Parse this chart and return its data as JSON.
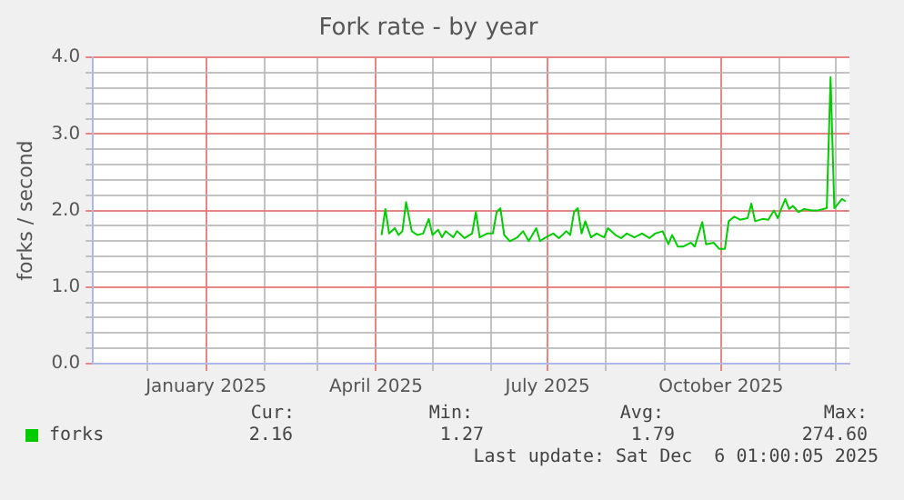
{
  "chart_data": {
    "type": "line",
    "title": "Fork rate - by year",
    "ylabel": "forks / second",
    "xlim": [
      "2024-11-02",
      "2025-12-08"
    ],
    "xticks": [
      {
        "value": "2024-12-01",
        "label": null
      },
      {
        "value": "2025-01-01",
        "label": "January 2025"
      },
      {
        "value": "2025-02-01",
        "label": null
      },
      {
        "value": "2025-03-01",
        "label": null
      },
      {
        "value": "2025-04-01",
        "label": "April 2025"
      },
      {
        "value": "2025-05-01",
        "label": null
      },
      {
        "value": "2025-06-01",
        "label": null
      },
      {
        "value": "2025-07-01",
        "label": "July 2025"
      },
      {
        "value": "2025-08-01",
        "label": null
      },
      {
        "value": "2025-09-01",
        "label": null
      },
      {
        "value": "2025-10-01",
        "label": "October 2025"
      },
      {
        "value": "2025-11-01",
        "label": null
      },
      {
        "value": "2025-12-01",
        "label": null
      }
    ],
    "ylim": [
      0,
      4
    ],
    "yticks": [
      {
        "value": 0,
        "label": "0.0"
      },
      {
        "value": 0.2,
        "label": null
      },
      {
        "value": 0.4,
        "label": null
      },
      {
        "value": 0.6,
        "label": null
      },
      {
        "value": 0.8,
        "label": null
      },
      {
        "value": 1,
        "label": "1.0"
      },
      {
        "value": 1.2,
        "label": null
      },
      {
        "value": 1.4,
        "label": null
      },
      {
        "value": 1.6,
        "label": null
      },
      {
        "value": 1.8,
        "label": null
      },
      {
        "value": 2,
        "label": "2.0"
      },
      {
        "value": 2.2,
        "label": null
      },
      {
        "value": 2.4,
        "label": null
      },
      {
        "value": 2.6,
        "label": null
      },
      {
        "value": 2.8,
        "label": null
      },
      {
        "value": 3,
        "label": "3.0"
      },
      {
        "value": 3.2,
        "label": null
      },
      {
        "value": 3.4,
        "label": null
      },
      {
        "value": 3.6,
        "label": null
      },
      {
        "value": 3.8,
        "label": null
      },
      {
        "value": 4,
        "label": "4.0"
      }
    ],
    "grid": true,
    "legend": "bottom",
    "marker": "none",
    "line_style": "solid",
    "x": [
      "2025-04-04",
      "2025-04-06",
      "2025-04-08",
      "2025-04-11",
      "2025-04-13",
      "2025-04-15",
      "2025-04-17",
      "2025-04-20",
      "2025-04-23",
      "2025-04-26",
      "2025-04-29",
      "2025-05-01",
      "2025-05-04",
      "2025-05-06",
      "2025-05-08",
      "2025-05-12",
      "2025-05-14",
      "2025-05-18",
      "2025-05-22",
      "2025-05-24",
      "2025-05-26",
      "2025-05-30",
      "2025-06-02",
      "2025-06-04",
      "2025-06-06",
      "2025-06-08",
      "2025-06-11",
      "2025-06-15",
      "2025-06-18",
      "2025-06-21",
      "2025-06-25",
      "2025-06-27",
      "2025-06-30",
      "2025-07-04",
      "2025-07-07",
      "2025-07-11",
      "2025-07-13",
      "2025-07-15",
      "2025-07-17",
      "2025-07-19",
      "2025-07-21",
      "2025-07-24",
      "2025-07-27",
      "2025-07-31",
      "2025-08-02",
      "2025-08-06",
      "2025-08-09",
      "2025-08-12",
      "2025-08-16",
      "2025-08-20",
      "2025-08-24",
      "2025-08-27",
      "2025-08-31",
      "2025-09-03",
      "2025-09-05",
      "2025-09-08",
      "2025-09-11",
      "2025-09-15",
      "2025-09-17",
      "2025-09-21",
      "2025-09-23",
      "2025-09-27",
      "2025-09-30",
      "2025-10-03",
      "2025-10-05",
      "2025-10-08",
      "2025-10-11",
      "2025-10-15",
      "2025-10-17",
      "2025-10-19",
      "2025-10-23",
      "2025-10-26",
      "2025-10-29",
      "2025-10-31",
      "2025-11-02",
      "2025-11-04",
      "2025-11-06",
      "2025-11-08",
      "2025-11-11",
      "2025-11-14",
      "2025-11-18",
      "2025-11-21",
      "2025-11-24",
      "2025-11-26",
      "2025-11-28",
      "2025-11-30",
      "2025-12-02",
      "2025-12-04",
      "2025-12-06"
    ],
    "series": [
      {
        "name": "forks",
        "color": "#00cc00",
        "values": [
          1.68,
          2.02,
          1.7,
          1.77,
          1.68,
          1.73,
          2.11,
          1.73,
          1.68,
          1.7,
          1.89,
          1.68,
          1.75,
          1.65,
          1.73,
          1.65,
          1.73,
          1.64,
          1.7,
          1.98,
          1.65,
          1.7,
          1.7,
          1.98,
          2.03,
          1.68,
          1.6,
          1.65,
          1.73,
          1.6,
          1.77,
          1.6,
          1.65,
          1.7,
          1.64,
          1.73,
          1.68,
          1.98,
          2.03,
          1.7,
          1.86,
          1.65,
          1.7,
          1.65,
          1.77,
          1.68,
          1.64,
          1.7,
          1.65,
          1.7,
          1.64,
          1.7,
          1.73,
          1.56,
          1.68,
          1.53,
          1.53,
          1.58,
          1.53,
          1.85,
          1.56,
          1.58,
          1.5,
          1.5,
          1.86,
          1.92,
          1.88,
          1.9,
          2.09,
          1.86,
          1.89,
          1.88,
          2.0,
          1.9,
          2.03,
          2.15,
          2.02,
          2.06,
          1.98,
          2.02,
          2.0,
          2.0,
          2.02,
          2.03,
          3.74,
          2.03,
          2.09,
          2.15,
          2.12
        ]
      }
    ],
    "annotations": [
      "Cur:",
      "Min:",
      "Avg:",
      "Max:",
      "2.16",
      "1.27",
      "1.79",
      "274.60",
      "Last update: Sat Dec  6 01:00:05 2025"
    ]
  }
}
